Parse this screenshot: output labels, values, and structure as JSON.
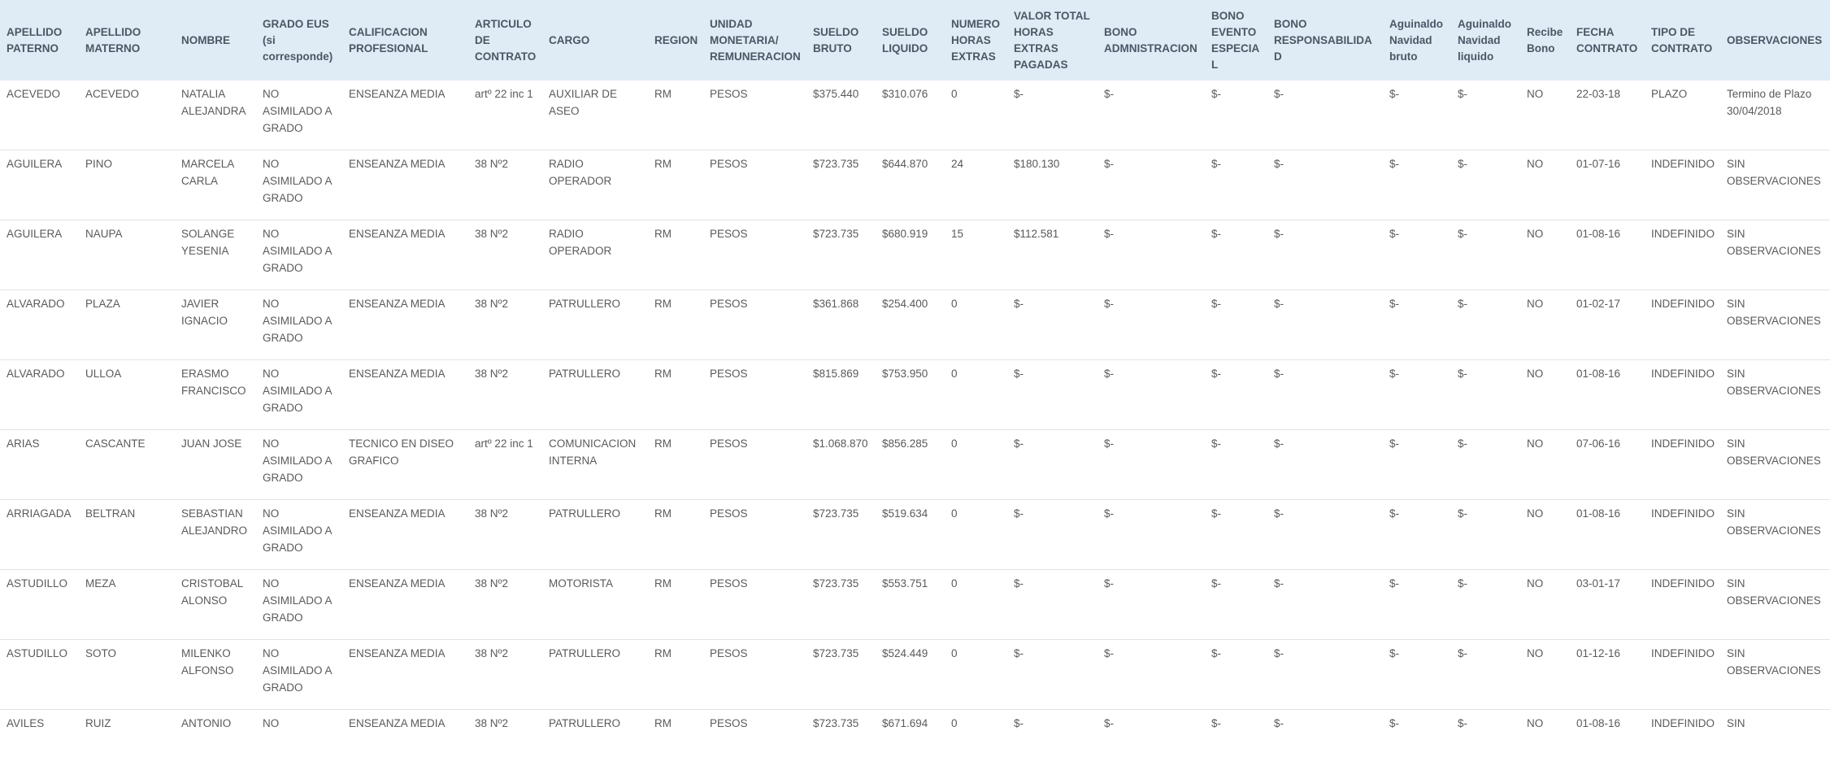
{
  "table": {
    "headers": [
      "APELLIDO PATERNO",
      "APELLIDO MATERNO",
      "NOMBRE",
      "GRADO EUS (si corresponde)",
      "CALIFICACION PROFESIONAL",
      "ARTICULO DE CONTRATO",
      "CARGO",
      "REGION",
      "UNIDAD MONETARIA/ REMUNERACION",
      "SUELDO BRUTO",
      "SUELDO LIQUIDO",
      "NUMERO HORAS EXTRAS",
      "VALOR TOTAL HORAS EXTRAS PAGADAS",
      "BONO ADMNISTRACION",
      "BONO EVENTO ESPECIAL",
      "BONO RESPONSABILIDAD",
      "Aguinaldo Navidad bruto",
      "Aguinaldo Navidad liquido",
      "Recibe Bono",
      "FECHA CONTRATO",
      "TIPO DE CONTRATO",
      "OBSERVACIONES"
    ],
    "rows": [
      [
        "ACEVEDO",
        "ACEVEDO",
        "NATALIA ALEJANDRA",
        "NO ASIMILADO A GRADO",
        "ENSEANZA MEDIA",
        "artº 22 inc 1",
        "AUXILIAR DE ASEO",
        "RM",
        "PESOS",
        "$375.440",
        "$310.076",
        "0",
        "$-",
        "$-",
        "$-",
        "$-",
        "$-",
        "$-",
        "NO",
        "22-03-18",
        "PLAZO",
        "Termino de Plazo 30/04/2018"
      ],
      [
        "AGUILERA",
        "PINO",
        "MARCELA CARLA",
        "NO ASIMILADO A GRADO",
        "ENSEANZA MEDIA",
        "38 Nº2",
        "RADIO OPERADOR",
        "RM",
        "PESOS",
        "$723.735",
        "$644.870",
        "24",
        "$180.130",
        "$-",
        "$-",
        "$-",
        "$-",
        "$-",
        "NO",
        "01-07-16",
        "INDEFINIDO",
        "SIN OBSERVACIONES"
      ],
      [
        "AGUILERA",
        "NAUPA",
        "SOLANGE YESENIA",
        "NO ASIMILADO A GRADO",
        "ENSEANZA MEDIA",
        "38 Nº2",
        "RADIO OPERADOR",
        "RM",
        "PESOS",
        "$723.735",
        "$680.919",
        "15",
        "$112.581",
        "$-",
        "$-",
        "$-",
        "$-",
        "$-",
        "NO",
        "01-08-16",
        "INDEFINIDO",
        "SIN OBSERVACIONES"
      ],
      [
        "ALVARADO",
        "PLAZA",
        "JAVIER IGNACIO",
        "NO ASIMILADO A GRADO",
        "ENSEANZA MEDIA",
        "38 Nº2",
        "PATRULLERO",
        "RM",
        "PESOS",
        "$361.868",
        "$254.400",
        "0",
        "$-",
        "$-",
        "$-",
        "$-",
        "$-",
        "$-",
        "NO",
        "01-02-17",
        "INDEFINIDO",
        "SIN OBSERVACIONES"
      ],
      [
        "ALVARADO",
        "ULLOA",
        "ERASMO FRANCISCO",
        "NO ASIMILADO A GRADO",
        "ENSEANZA MEDIA",
        "38 Nº2",
        "PATRULLERO",
        "RM",
        "PESOS",
        "$815.869",
        "$753.950",
        "0",
        "$-",
        "$-",
        "$-",
        "$-",
        "$-",
        "$-",
        "NO",
        "01-08-16",
        "INDEFINIDO",
        "SIN OBSERVACIONES"
      ],
      [
        "ARIAS",
        "CASCANTE",
        "JUAN JOSE",
        "NO ASIMILADO A GRADO",
        "TECNICO EN DISEO GRAFICO",
        "artº 22 inc 1",
        "COMUNICACION INTERNA",
        "RM",
        "PESOS",
        "$1.068.870",
        "$856.285",
        "0",
        "$-",
        "$-",
        "$-",
        "$-",
        "$-",
        "$-",
        "NO",
        "07-06-16",
        "INDEFINIDO",
        "SIN OBSERVACIONES"
      ],
      [
        "ARRIAGADA",
        "BELTRAN",
        "SEBASTIAN ALEJANDRO",
        "NO ASIMILADO A GRADO",
        "ENSEANZA MEDIA",
        "38 Nº2",
        "PATRULLERO",
        "RM",
        "PESOS",
        "$723.735",
        "$519.634",
        "0",
        "$-",
        "$-",
        "$-",
        "$-",
        "$-",
        "$-",
        "NO",
        "01-08-16",
        "INDEFINIDO",
        "SIN OBSERVACIONES"
      ],
      [
        "ASTUDILLO",
        "MEZA",
        "CRISTOBAL ALONSO",
        "NO ASIMILADO A GRADO",
        "ENSEANZA MEDIA",
        "38 Nº2",
        "MOTORISTA",
        "RM",
        "PESOS",
        "$723.735",
        "$553.751",
        "0",
        "$-",
        "$-",
        "$-",
        "$-",
        "$-",
        "$-",
        "NO",
        "03-01-17",
        "INDEFINIDO",
        "SIN OBSERVACIONES"
      ],
      [
        "ASTUDILLO",
        "SOTO",
        "MILENKO ALFONSO",
        "NO ASIMILADO A GRADO",
        "ENSEANZA MEDIA",
        "38 Nº2",
        "PATRULLERO",
        "RM",
        "PESOS",
        "$723.735",
        "$524.449",
        "0",
        "$-",
        "$-",
        "$-",
        "$-",
        "$-",
        "$-",
        "NO",
        "01-12-16",
        "INDEFINIDO",
        "SIN OBSERVACIONES"
      ],
      [
        "AVILES",
        "RUIZ",
        "ANTONIO",
        "NO",
        "ENSEANZA MEDIA",
        "38 Nº2",
        "PATRULLERO",
        "RM",
        "PESOS",
        "$723.735",
        "$671.694",
        "0",
        "$-",
        "$-",
        "$-",
        "$-",
        "$-",
        "$-",
        "NO",
        "01-08-16",
        "INDEFINIDO",
        "SIN"
      ]
    ]
  }
}
